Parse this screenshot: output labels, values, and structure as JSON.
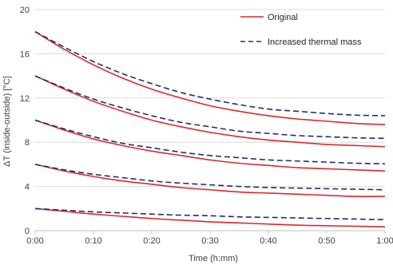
{
  "chart_data": {
    "type": "line",
    "title": "",
    "xlabel": "Time (h:mm)",
    "ylabel": "ΔT (inside-outside) [°C]",
    "xlim": [
      0,
      60
    ],
    "ylim": [
      0,
      20
    ],
    "x_ticks": [
      {
        "value": 0,
        "label": "0:00"
      },
      {
        "value": 10,
        "label": "0:10"
      },
      {
        "value": 20,
        "label": "0:20"
      },
      {
        "value": 30,
        "label": "0:30"
      },
      {
        "value": 40,
        "label": "0:40"
      },
      {
        "value": 50,
        "label": "0:50"
      },
      {
        "value": 60,
        "label": "1:00"
      }
    ],
    "y_ticks": [
      {
        "value": 0,
        "label": "0"
      },
      {
        "value": 4,
        "label": "4"
      },
      {
        "value": 8,
        "label": "8"
      },
      {
        "value": 12,
        "label": "12"
      },
      {
        "value": 16,
        "label": "16"
      },
      {
        "value": 20,
        "label": "20"
      }
    ],
    "grid": "horizontal",
    "legend": "top-right",
    "legend_entries": [
      "Original",
      "Increased thermal mass"
    ],
    "x": [
      0,
      5,
      10,
      15,
      20,
      25,
      30,
      35,
      40,
      45,
      50,
      55,
      60
    ],
    "series": [
      {
        "name": "Original",
        "group": "original",
        "color": "#e0262b",
        "dash": "solid",
        "values": [
          18.0,
          16.4,
          15.0,
          13.8,
          12.8,
          12.0,
          11.3,
          10.8,
          10.4,
          10.1,
          9.9,
          9.7,
          9.6
        ]
      },
      {
        "name": "Original",
        "group": "original",
        "color": "#e0262b",
        "dash": "solid",
        "values": [
          14.0,
          12.8,
          11.7,
          10.8,
          10.0,
          9.4,
          8.9,
          8.5,
          8.2,
          8.0,
          7.8,
          7.7,
          7.6
        ]
      },
      {
        "name": "Original",
        "group": "original",
        "color": "#e0262b",
        "dash": "solid",
        "values": [
          10.0,
          9.1,
          8.3,
          7.7,
          7.2,
          6.8,
          6.4,
          6.1,
          5.9,
          5.7,
          5.6,
          5.5,
          5.4
        ]
      },
      {
        "name": "Original",
        "group": "original",
        "color": "#e0262b",
        "dash": "solid",
        "values": [
          6.0,
          5.4,
          4.9,
          4.5,
          4.2,
          3.9,
          3.7,
          3.5,
          3.4,
          3.3,
          3.2,
          3.1,
          3.1
        ]
      },
      {
        "name": "Original",
        "group": "original",
        "color": "#e0262b",
        "dash": "solid",
        "values": [
          2.0,
          1.75,
          1.5,
          1.3,
          1.1,
          0.95,
          0.8,
          0.7,
          0.6,
          0.5,
          0.45,
          0.4,
          0.35
        ]
      },
      {
        "name": "Increased thermal mass",
        "group": "increased",
        "color": "#1f2f6e",
        "dash": "dashed",
        "values": [
          18.0,
          16.6,
          15.3,
          14.2,
          13.3,
          12.5,
          11.9,
          11.4,
          11.0,
          10.8,
          10.6,
          10.45,
          10.4
        ]
      },
      {
        "name": "Increased thermal mass",
        "group": "increased",
        "color": "#1f2f6e",
        "dash": "dashed",
        "values": [
          14.0,
          12.9,
          11.9,
          11.1,
          10.4,
          9.8,
          9.4,
          9.0,
          8.8,
          8.6,
          8.5,
          8.4,
          8.35
        ]
      },
      {
        "name": "Increased thermal mass",
        "group": "increased",
        "color": "#1f2f6e",
        "dash": "dashed",
        "values": [
          10.0,
          9.2,
          8.5,
          7.9,
          7.5,
          7.1,
          6.8,
          6.6,
          6.4,
          6.3,
          6.2,
          6.1,
          6.05
        ]
      },
      {
        "name": "Increased thermal mass",
        "group": "increased",
        "color": "#1f2f6e",
        "dash": "dashed",
        "values": [
          6.0,
          5.5,
          5.1,
          4.8,
          4.5,
          4.3,
          4.15,
          4.0,
          3.9,
          3.85,
          3.8,
          3.75,
          3.7
        ]
      },
      {
        "name": "Increased thermal mass",
        "group": "increased",
        "color": "#1f2f6e",
        "dash": "dashed",
        "values": [
          2.0,
          1.85,
          1.7,
          1.6,
          1.5,
          1.4,
          1.35,
          1.25,
          1.2,
          1.15,
          1.1,
          1.05,
          1.0
        ]
      }
    ]
  },
  "colors": {
    "grid": "#d9d9d9",
    "axis": "#bfbfbf",
    "text": "#404040"
  }
}
